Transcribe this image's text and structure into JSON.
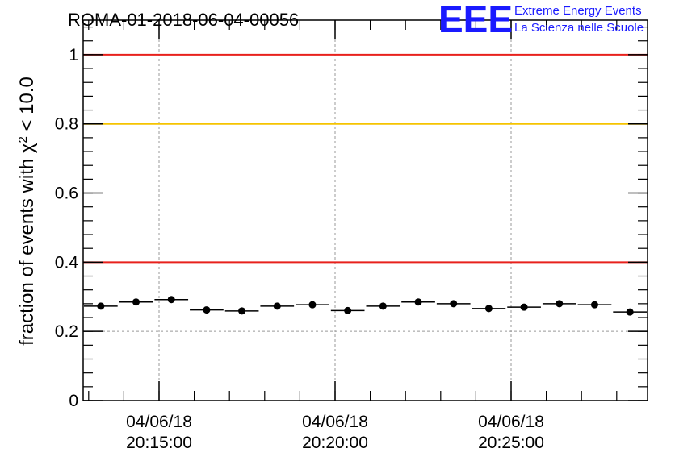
{
  "chart_data": {
    "type": "scatter",
    "title": "ROMA-01-2018-06-04-00056",
    "ylabel_prefix": "fraction of events with ",
    "ylabel_symbol": "χ",
    "ylabel_exp": "2",
    "ylabel_suffix": " < 10.0",
    "xlabel": "",
    "ylim": [
      0,
      1.1
    ],
    "yticks": [
      "0",
      "0.2",
      "0.4",
      "0.6",
      "0.8",
      "1"
    ],
    "yticks_values": [
      0,
      0.2,
      0.4,
      0.6,
      0.8,
      1.0
    ],
    "xticks": [
      {
        "date": "04/06/18",
        "time": "20:15:00"
      },
      {
        "date": "04/06/18",
        "time": "20:20:00"
      },
      {
        "date": "04/06/18",
        "time": "20:25:00"
      }
    ],
    "grid": true,
    "reference_lines": [
      {
        "y": 1.0,
        "color": "#e8211c"
      },
      {
        "y": 0.8,
        "color": "#f5c400"
      },
      {
        "y": 0.4,
        "color": "#e8211c"
      }
    ],
    "points": [
      0.273,
      0.285,
      0.292,
      0.262,
      0.259,
      0.273,
      0.277,
      0.26,
      0.273,
      0.285,
      0.28,
      0.266,
      0.27,
      0.28,
      0.277,
      0.256
    ],
    "marker_color": "#000000"
  },
  "logo": {
    "mark": "EEE",
    "line1": "Extreme Energy Events",
    "line2": "La Scienza nelle Scuole"
  }
}
